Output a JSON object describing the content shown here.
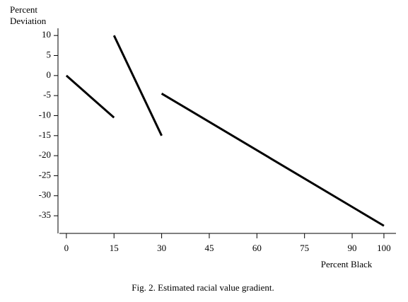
{
  "chart_data": {
    "type": "line",
    "y_label": "Percent Deviation",
    "x_label": "Percent Black",
    "caption": "Fig. 2. Estimated racial value gradient.",
    "x": [
      0,
      15,
      null,
      15,
      30,
      null,
      30,
      100
    ],
    "values": [
      0,
      -10.5,
      null,
      10,
      -15,
      null,
      -4.5,
      -37.5
    ],
    "color": "#000000",
    "xlim": [
      -2.2,
      103.8
    ],
    "xticks": [
      0,
      15,
      30,
      45,
      60,
      75,
      90,
      100
    ],
    "ylim": [
      -39.4,
      11.8
    ],
    "yticks": [
      10,
      5,
      0,
      -5,
      -10,
      -15,
      -20,
      -25,
      -30,
      -35
    ]
  }
}
